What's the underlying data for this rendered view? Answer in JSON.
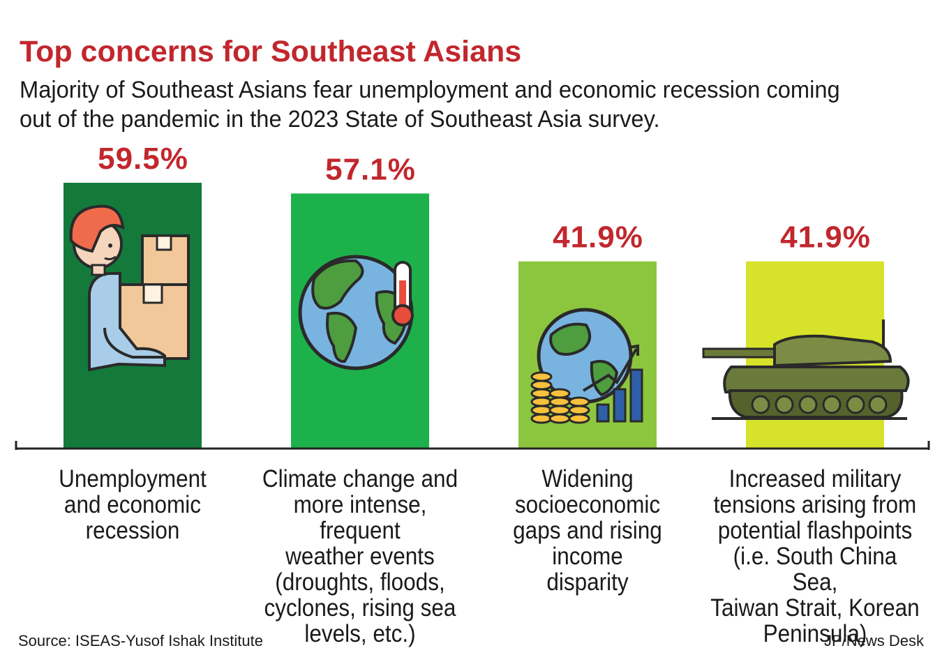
{
  "title": "Top concerns for Southeast Asians",
  "subtitle_lines": [
    "Majority of Southeast Asians fear unemployment and economic recession coming",
    "out of the pandemic in the 2023 State of Southeast Asia survey."
  ],
  "source": "Source: ISEAS-Yusof Ishak Institute",
  "credit": "JP/News Desk",
  "colors": {
    "title": "#c1272d",
    "value_label": "#c1272d",
    "bars": [
      "#137a3c",
      "#1db14b",
      "#8cc63f",
      "#d7e22a"
    ]
  },
  "chart_data": {
    "type": "bar",
    "title": "Top concerns for Southeast Asians",
    "value_unit": "%",
    "ylim": [
      0,
      65
    ],
    "grid": false,
    "legend": "none",
    "categories": [
      "Unemployment and economic recession",
      "Climate change and more intense, frequent weather events (droughts, floods, cyclones, rising sea levels, etc.)",
      "Widening socioeconomic gaps and rising income disparity",
      "Increased military tensions arising from potential flashpoints (i.e. South China Sea, Taiwan Strait, Korean Peninsula)"
    ],
    "category_label_lines": [
      [
        "Unemployment",
        "and economic",
        "recession"
      ],
      [
        "Climate change and",
        "more intense, frequent",
        "weather events",
        "(droughts, floods,",
        "cyclones, rising sea",
        "levels, etc.)"
      ],
      [
        "Widening",
        "socioeconomic",
        "gaps and rising",
        "income",
        "disparity"
      ],
      [
        "Increased military",
        "tensions arising from",
        "potential flashpoints",
        "(i.e. South China Sea,",
        "Taiwan Strait, Korean",
        "Peninsula)"
      ]
    ],
    "value_labels": [
      "59.5%",
      "57.1%",
      "41.9%",
      "41.9%"
    ],
    "values": [
      59.5,
      57.1,
      41.9,
      41.9
    ],
    "icons": [
      "worker-carrying-boxes-icon",
      "globe-thermometer-icon",
      "globe-coins-growth-chart-icon",
      "military-tank-icon"
    ]
  }
}
